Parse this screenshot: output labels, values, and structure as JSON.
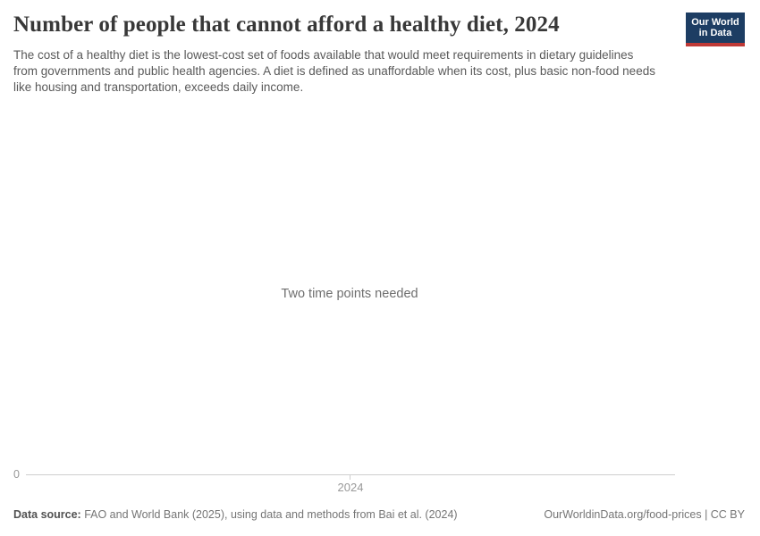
{
  "header": {
    "title": "Number of people that cannot afford a healthy diet, 2024",
    "subtitle": "The cost of a healthy diet is the lowest-cost set of foods available that would meet requirements in dietary guidelines from governments and public health agencies. A diet is defined as unaffordable when its cost, plus basic non-food needs like housing and transportation, exceeds daily income.",
    "logo": {
      "line1": "Our World",
      "line2": "in Data",
      "bg_color": "#1d3d63",
      "accent_color": "#bf3936"
    }
  },
  "chart_data": {
    "type": "line",
    "title": "Number of people that cannot afford a healthy diet, 2024",
    "empty_state_message": "Two time points needed",
    "series": [],
    "x_ticks": [
      "2024"
    ],
    "y_ticks": [
      "0"
    ],
    "xlabel": "",
    "ylabel": "",
    "grid": false,
    "legend": false
  },
  "footer": {
    "data_source_label": "Data source:",
    "data_source_text": " FAO and World Bank (2025), using data and methods from Bai et al. (2024)",
    "attribution": "OurWorldinData.org/food-prices | CC BY"
  }
}
